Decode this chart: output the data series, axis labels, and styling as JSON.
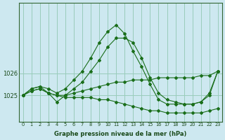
{
  "xlabel": "Graphe pression niveau de la mer (hPa)",
  "ylabel": "",
  "background_color": "#cde8f0",
  "grid_color": "#99ccbb",
  "line_color": "#1a6e1a",
  "x_ticks": [
    0,
    1,
    2,
    3,
    4,
    5,
    6,
    7,
    8,
    9,
    10,
    11,
    12,
    13,
    14,
    15,
    16,
    17,
    18,
    19,
    20,
    21,
    22,
    23
  ],
  "ylim": [
    1023.8,
    1029.2
  ],
  "yticks": [
    1025,
    1026
  ],
  "series": [
    [
      1025.0,
      1025.3,
      1025.4,
      1025.3,
      1025.1,
      1025.3,
      1025.7,
      1026.1,
      1026.7,
      1027.4,
      1027.9,
      1028.2,
      1027.8,
      1027.0,
      1026.3,
      1025.5,
      1024.8,
      1024.6,
      1024.6,
      1024.6,
      1024.6,
      1024.7,
      1025.0,
      1026.1
    ],
    [
      1025.0,
      1025.3,
      1025.4,
      1025.1,
      1024.7,
      1025.0,
      1025.3,
      1025.6,
      1026.1,
      1026.6,
      1027.2,
      1027.6,
      1027.6,
      1027.4,
      1026.7,
      1025.8,
      1025.1,
      1024.8,
      1024.7,
      1024.6,
      1024.6,
      1024.7,
      1025.1,
      1026.1
    ],
    [
      1025.0,
      1025.2,
      1025.3,
      1025.1,
      1025.0,
      1024.9,
      1024.9,
      1024.9,
      1024.9,
      1024.8,
      1024.8,
      1024.7,
      1024.6,
      1024.5,
      1024.4,
      1024.3,
      1024.3,
      1024.2,
      1024.2,
      1024.2,
      1024.2,
      1024.2,
      1024.3,
      1024.4
    ],
    [
      1025.0,
      1025.2,
      1025.3,
      1025.1,
      1025.0,
      1025.0,
      1025.1,
      1025.2,
      1025.3,
      1025.4,
      1025.5,
      1025.6,
      1025.6,
      1025.7,
      1025.7,
      1025.7,
      1025.8,
      1025.8,
      1025.8,
      1025.8,
      1025.8,
      1025.9,
      1025.9,
      1026.1
    ]
  ]
}
